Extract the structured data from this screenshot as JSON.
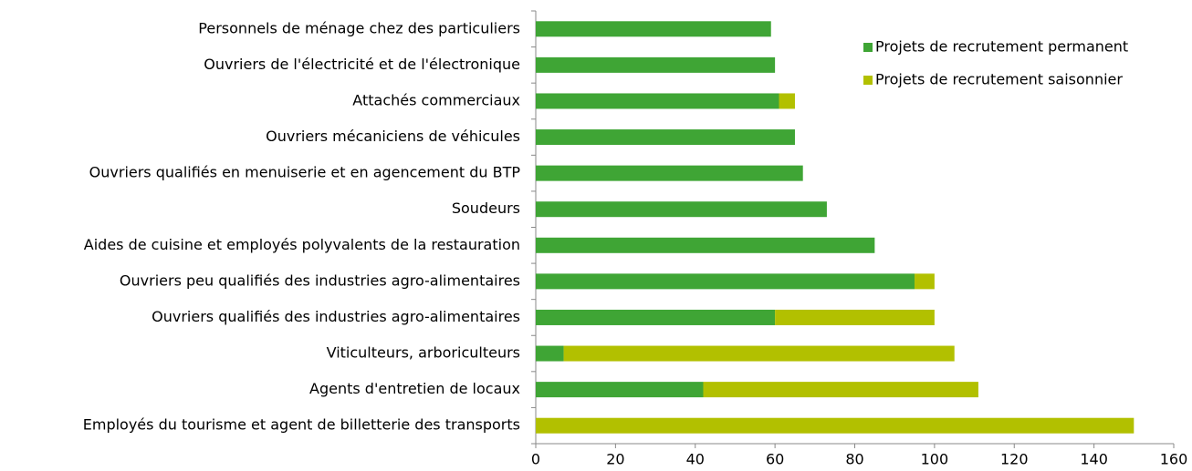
{
  "chart_data": {
    "type": "stacked_bar_horizontal",
    "categories": [
      "Personnels de ménage chez des particuliers",
      "Ouvriers de l'électricité et de l'électronique",
      "Attachés commerciaux",
      "Ouvriers mécaniciens de véhicules",
      "Ouvriers qualifiés en menuiserie et en agencement du BTP",
      "Soudeurs",
      "Aides de cuisine et employés polyvalents de la restauration",
      "Ouvriers peu qualifiés des industries agro-alimentaires",
      "Ouvriers qualifiés des industries agro-alimentaires",
      "Viticulteurs, arboriculteurs",
      "Agents d'entretien de locaux",
      "Employés du tourisme et agent de billetterie des transports"
    ],
    "series": [
      {
        "name": "Projets de recrutement permanent",
        "color": "#3fa535",
        "values": [
          59,
          60,
          61,
          65,
          67,
          73,
          85,
          95,
          60,
          7,
          42,
          0
        ]
      },
      {
        "name": "Projets de recrutement saisonnier",
        "color": "#b2c000",
        "values": [
          0,
          0,
          4,
          0,
          0,
          0,
          0,
          5,
          40,
          98,
          69,
          150
        ]
      }
    ],
    "xlim": [
      0,
      160
    ],
    "xticks": [
      0,
      20,
      40,
      60,
      80,
      100,
      120,
      140,
      160
    ],
    "legend": "top-right"
  }
}
